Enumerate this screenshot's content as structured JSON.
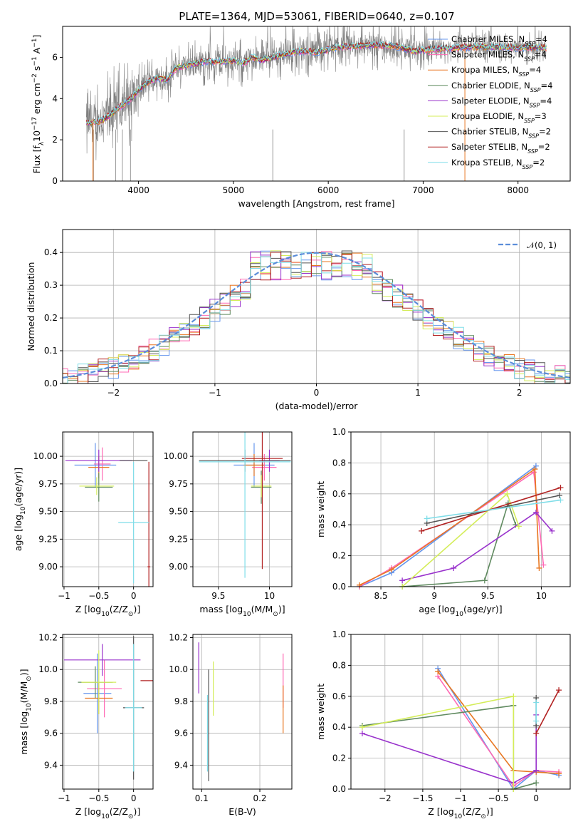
{
  "figure": {
    "title": "PLATE=1364, MJD=53061, FIBERID=0640, z=0.107"
  },
  "chart_data": [
    {
      "id": "spectrum",
      "type": "line",
      "title": "PLATE=1364, MJD=53061, FIBERID=0640, z=0.107",
      "xlabel": "wavelength [Angstrom, rest frame]",
      "ylabel": "Flux [f_λ 10^-17 erg cm^-2 s^-1 A^-1]",
      "xlim": [
        3200,
        8550
      ],
      "ylim": [
        0,
        7.5
      ],
      "xticks": [
        4000,
        5000,
        6000,
        7000,
        8000
      ],
      "yticks": [
        0,
        2,
        4,
        6
      ],
      "grid": false,
      "legend_position": "right",
      "data_color": "#808080",
      "continuum": [
        [
          3450,
          2.8
        ],
        [
          3600,
          2.9
        ],
        [
          3700,
          3.2
        ],
        [
          3800,
          3.6
        ],
        [
          3900,
          3.9
        ],
        [
          4000,
          4.4
        ],
        [
          4100,
          4.8
        ],
        [
          4200,
          5.0
        ],
        [
          4300,
          4.9
        ],
        [
          4400,
          5.5
        ],
        [
          4500,
          5.6
        ],
        [
          4700,
          5.8
        ],
        [
          4900,
          5.8
        ],
        [
          5000,
          5.85
        ],
        [
          5100,
          5.7
        ],
        [
          5200,
          6.0
        ],
        [
          5300,
          5.85
        ],
        [
          5500,
          6.1
        ],
        [
          5700,
          6.3
        ],
        [
          5900,
          6.25
        ],
        [
          6100,
          6.5
        ],
        [
          6300,
          6.55
        ],
        [
          6500,
          6.6
        ],
        [
          6700,
          6.55
        ],
        [
          6900,
          6.3
        ],
        [
          7100,
          6.4
        ],
        [
          7300,
          6.45
        ],
        [
          7500,
          6.5
        ],
        [
          7800,
          6.5
        ],
        [
          8000,
          6.45
        ],
        [
          8200,
          6.5
        ],
        [
          8300,
          6.45
        ]
      ],
      "absorption_lines": [
        3525,
        3760,
        3830,
        3915,
        5415,
        6800
      ],
      "series": [
        {
          "name": "Chabrier MILES, N_SSP=4",
          "color": "#6495ed"
        },
        {
          "name": "Salpeter MILES, N_SSP=4",
          "color": "#ff69b4"
        },
        {
          "name": "Kroupa MILES, N_SSP=4",
          "color": "#e87722"
        },
        {
          "name": "Chabrier ELODIE, N_SSP=4",
          "color": "#5f8a5f"
        },
        {
          "name": "Salpeter ELODIE, N_SSP=4",
          "color": "#9932cc"
        },
        {
          "name": "Kroupa ELODIE, N_SSP=3",
          "color": "#d4ed5a"
        },
        {
          "name": "Chabrier STELIB, N_SSP=2",
          "color": "#555555"
        },
        {
          "name": "Salpeter STELIB, N_SSP=2",
          "color": "#b22222"
        },
        {
          "name": "Kroupa STELIB, N_SSP=2",
          "color": "#7fdde8"
        }
      ]
    },
    {
      "id": "residuals",
      "type": "line",
      "xlabel": "(data-model)/error",
      "ylabel": "Normed distribution",
      "xlim": [
        -2.5,
        2.5
      ],
      "ylim": [
        0,
        0.47
      ],
      "xticks": [
        -2,
        -1,
        0,
        1,
        2
      ],
      "yticks": [
        0.0,
        0.1,
        0.2,
        0.3,
        0.4
      ],
      "grid": true,
      "legend_position": "top-right",
      "gaussian": {
        "name": "𝒩(0, 1)",
        "color": "#5b8dd9",
        "style": "dashed"
      },
      "hist_colors": [
        "#6495ed",
        "#ff69b4",
        "#e87722",
        "#5f8a5f",
        "#9932cc",
        "#d4ed5a",
        "#555555",
        "#b22222",
        "#7fdde8"
      ],
      "hist_bin_width": 0.1
    },
    {
      "id": "age_vs_Z",
      "type": "scatter",
      "xlabel": "Z [log10(Z/Z⊙)]",
      "ylabel": "age  [log10(age/yr)]",
      "xlim": [
        -1.02,
        0.28
      ],
      "ylim": [
        8.82,
        10.22
      ],
      "xticks": [
        -1.0,
        -0.5,
        0.0
      ],
      "yticks": [
        9.0,
        9.25,
        9.5,
        9.75,
        10.0
      ],
      "grid": true,
      "points": [
        {
          "color": "#6495ed",
          "x": -0.55,
          "y": 9.92,
          "xerr": 0.3,
          "yerr": 0.2
        },
        {
          "color": "#ff69b4",
          "x": -0.45,
          "y": 9.93,
          "xerr": 0.12,
          "yerr": 0.15
        },
        {
          "color": "#e87722",
          "x": -0.5,
          "y": 9.9,
          "xerr": 0.15,
          "yerr": 0.1
        },
        {
          "color": "#5f8a5f",
          "x": -0.5,
          "y": 9.72,
          "xerr": 0.2,
          "yerr": 0.13
        },
        {
          "color": "#9932cc",
          "x": -0.5,
          "y": 9.96,
          "xerr": 0.48,
          "yerr": 0.1
        },
        {
          "color": "#d4ed5a",
          "x": -0.53,
          "y": 9.73,
          "xerr": 0.25,
          "yerr": 0.08
        },
        {
          "color": "#555555",
          "x": 0.0,
          "y": 9.96,
          "xerr": 0.2,
          "yerr": 0.0
        },
        {
          "color": "#b22222",
          "x": 0.22,
          "y": 9.0,
          "xerr": 0.02,
          "yerr": 0.95
        },
        {
          "color": "#7fdde8",
          "x": 0.0,
          "y": 9.4,
          "xerr": 0.22,
          "yerr": 0.55
        }
      ]
    },
    {
      "id": "age_vs_mass",
      "type": "scatter",
      "xlabel": "mass [log10(M/M⊙)]",
      "ylabel": "",
      "xlim": [
        9.25,
        10.22
      ],
      "ylim": [
        8.82,
        10.22
      ],
      "xticks": [
        9.5,
        10.0
      ],
      "yticks": [
        9.0,
        9.25,
        9.5,
        9.75,
        10.0
      ],
      "grid": true,
      "points": [
        {
          "color": "#6495ed",
          "x": 9.85,
          "y": 9.92,
          "xerr": 0.2,
          "yerr": 0.2
        },
        {
          "color": "#ff69b4",
          "x": 9.95,
          "y": 9.9,
          "xerr": 0.12,
          "yerr": 0.12
        },
        {
          "color": "#e87722",
          "x": 9.85,
          "y": 9.92,
          "xerr": 0.1,
          "yerr": 0.1
        },
        {
          "color": "#5f8a5f",
          "x": 9.92,
          "y": 9.72,
          "xerr": 0.1,
          "yerr": 0.15
        },
        {
          "color": "#9932cc",
          "x": 10.0,
          "y": 9.96,
          "xerr": 0.1,
          "yerr": 0.1
        },
        {
          "color": "#d4ed5a",
          "x": 9.92,
          "y": 9.73,
          "xerr": 0.1,
          "yerr": 0.1
        },
        {
          "color": "#555555",
          "x": 9.76,
          "y": 9.96,
          "xerr": 0.45,
          "yerr": 0.1
        },
        {
          "color": "#b22222",
          "x": 9.93,
          "y": 9.98,
          "xerr": 0.2,
          "yerr": 1.0
        },
        {
          "color": "#7fdde8",
          "x": 9.76,
          "y": 9.95,
          "xerr": 0.45,
          "yerr": 1.05
        }
      ]
    },
    {
      "id": "massweight_vs_age",
      "type": "line",
      "xlabel": "age  [log10(age/yr)]",
      "ylabel": "mass weight",
      "xlim": [
        8.22,
        10.27
      ],
      "ylim": [
        0,
        1.0
      ],
      "xticks": [
        8.5,
        9.0,
        9.5,
        10.0
      ],
      "yticks": [
        0.0,
        0.2,
        0.4,
        0.6,
        0.8,
        1.0
      ],
      "grid": true,
      "series": [
        {
          "color": "#6495ed",
          "x": [
            8.3,
            8.6,
            9.95
          ],
          "y": [
            0.0,
            0.09,
            0.78
          ]
        },
        {
          "color": "#ff69b4",
          "x": [
            8.3,
            8.6,
            9.93,
            10.02
          ],
          "y": [
            0.0,
            0.12,
            0.74,
            0.14
          ]
        },
        {
          "color": "#e87722",
          "x": [
            8.3,
            8.6,
            9.94,
            9.98
          ],
          "y": [
            0.01,
            0.11,
            0.76,
            0.12
          ]
        },
        {
          "color": "#5f8a5f",
          "x": [
            8.7,
            9.47,
            9.69,
            9.76
          ],
          "y": [
            0.0,
            0.04,
            0.54,
            0.4
          ]
        },
        {
          "color": "#9932cc",
          "x": [
            8.7,
            9.18,
            9.95,
            10.1
          ],
          "y": [
            0.04,
            0.12,
            0.48,
            0.36
          ]
        },
        {
          "color": "#d4ed5a",
          "x": [
            8.7,
            9.68,
            9.79
          ],
          "y": [
            0.0,
            0.6,
            0.39
          ]
        },
        {
          "color": "#555555",
          "x": [
            8.93,
            10.17
          ],
          "y": [
            0.41,
            0.59
          ]
        },
        {
          "color": "#b22222",
          "x": [
            8.88,
            10.18
          ],
          "y": [
            0.36,
            0.64
          ]
        },
        {
          "color": "#7fdde8",
          "x": [
            8.93,
            10.18
          ],
          "y": [
            0.44,
            0.56
          ]
        }
      ]
    },
    {
      "id": "mass_vs_Z",
      "type": "scatter",
      "xlabel": "Z [log10(Z/Z⊙)]",
      "ylabel": "mass [log10(M/M⊙)]",
      "xlim": [
        -1.02,
        0.28
      ],
      "ylim": [
        9.25,
        10.22
      ],
      "xticks": [
        -1.0,
        -0.5,
        0.0
      ],
      "yticks": [
        9.4,
        9.6,
        9.8,
        10.0,
        10.2
      ],
      "grid": true,
      "points": [
        {
          "color": "#6495ed",
          "x": -0.52,
          "y": 9.85,
          "xerr": 0.2,
          "yerr": 0.25
        },
        {
          "color": "#ff69b4",
          "x": -0.42,
          "y": 9.88,
          "xerr": 0.25,
          "yerr": 0.18
        },
        {
          "color": "#e87722",
          "x": -0.5,
          "y": 9.82,
          "xerr": 0.2,
          "yerr": 0.1
        },
        {
          "color": "#5f8a5f",
          "x": -0.55,
          "y": 9.92,
          "xerr": 0.25,
          "yerr": 0.1
        },
        {
          "color": "#9932cc",
          "x": -0.45,
          "y": 10.06,
          "xerr": 0.55,
          "yerr": 0.1
        },
        {
          "color": "#d4ed5a",
          "x": -0.5,
          "y": 9.92,
          "xerr": 0.25,
          "yerr": 0.2
        },
        {
          "color": "#555555",
          "x": 0.0,
          "y": 9.76,
          "xerr": 0.15,
          "yerr": 0.45
        },
        {
          "color": "#b22222",
          "x": 0.22,
          "y": 9.93,
          "xerr": 0.12,
          "yerr": 0.0
        },
        {
          "color": "#7fdde8",
          "x": 0.0,
          "y": 9.76,
          "xerr": 0.12,
          "yerr": 0.4
        }
      ]
    },
    {
      "id": "mass_vs_EBV",
      "type": "scatter",
      "xlabel": "E(B-V)",
      "ylabel": "",
      "xlim": [
        0.085,
        0.255
      ],
      "ylim": [
        9.25,
        10.22
      ],
      "xticks": [
        0.1,
        0.2
      ],
      "yticks": [
        9.4,
        9.6,
        9.8,
        10.0,
        10.2
      ],
      "grid": true,
      "points": [
        {
          "color": "#9932cc",
          "x": 0.095,
          "y": 10.01,
          "xerr": 0.0,
          "yerr": 0.16
        },
        {
          "color": "#d4ed5a",
          "x": 0.12,
          "y": 9.88,
          "xerr": 0.0,
          "yerr": 0.17
        },
        {
          "color": "#555555",
          "x": 0.112,
          "y": 9.65,
          "xerr": 0.0,
          "yerr": 0.35
        },
        {
          "color": "#7fdde8",
          "x": 0.11,
          "y": 9.6,
          "xerr": 0.0,
          "yerr": 0.24
        },
        {
          "color": "#ff69b4",
          "x": 0.24,
          "y": 9.93,
          "xerr": 0.0,
          "yerr": 0.17
        },
        {
          "color": "#e87722",
          "x": 0.24,
          "y": 9.75,
          "xerr": 0.0,
          "yerr": 0.15
        }
      ]
    },
    {
      "id": "massweight_vs_Z",
      "type": "line",
      "xlabel": "Z [log10(Z/Z⊙)]",
      "ylabel": "mass weight",
      "xlim": [
        -2.45,
        0.45
      ],
      "ylim": [
        0,
        1.0
      ],
      "xticks": [
        -2.0,
        -1.5,
        -1.0,
        -0.5,
        0.0
      ],
      "yticks": [
        0.0,
        0.2,
        0.4,
        0.6,
        0.8,
        1.0
      ],
      "grid": true,
      "series": [
        {
          "color": "#6495ed",
          "x": [
            -1.3,
            -0.3,
            0.0,
            0.3
          ],
          "y": [
            0.78,
            0.0,
            0.12,
            0.09
          ]
        },
        {
          "color": "#ff69b4",
          "x": [
            -1.3,
            -0.3,
            0.0,
            0.3
          ],
          "y": [
            0.73,
            0.02,
            0.12,
            0.11
          ]
        },
        {
          "color": "#e87722",
          "x": [
            -1.3,
            -0.3,
            0.0,
            0.3
          ],
          "y": [
            0.76,
            0.12,
            0.11,
            0.1
          ]
        },
        {
          "color": "#5f8a5f",
          "x": [
            -2.3,
            -0.3,
            -0.3,
            0.0
          ],
          "y": [
            0.41,
            0.54,
            0.0,
            0.04
          ]
        },
        {
          "color": "#9932cc",
          "x": [
            -2.3,
            -0.3,
            0.0,
            0.0
          ],
          "y": [
            0.36,
            0.04,
            0.12,
            0.48
          ]
        },
        {
          "color": "#d4ed5a",
          "x": [
            -2.3,
            -0.3,
            -0.3
          ],
          "y": [
            0.4,
            0.6,
            0.0
          ]
        },
        {
          "color": "#555555",
          "x": [
            0.0,
            0.0
          ],
          "y": [
            0.59,
            0.41
          ]
        },
        {
          "color": "#b22222",
          "x": [
            0.0,
            0.3
          ],
          "y": [
            0.36,
            0.64
          ]
        },
        {
          "color": "#7fdde8",
          "x": [
            0.0,
            0.0
          ],
          "y": [
            0.44,
            0.56
          ]
        }
      ]
    }
  ]
}
